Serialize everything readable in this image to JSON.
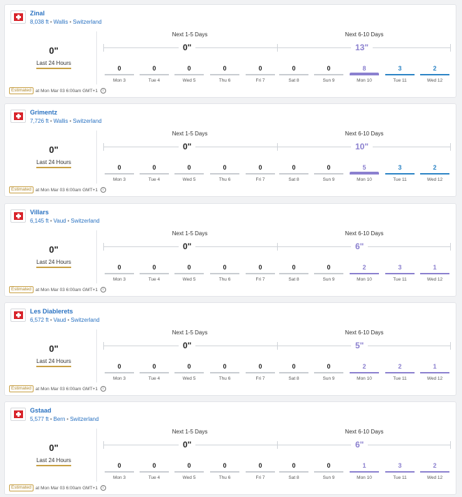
{
  "colors": {
    "link": "#2b73c2",
    "purple": "#8b80cf",
    "blue": "#2d85c6",
    "gray": "#c9cdd2",
    "gold": "#c8a044"
  },
  "labels": {
    "next_1_5": "Next 1-5 Days",
    "next_6_10": "Next 6-10 Days",
    "last_24": "Last 24 Hours",
    "estimated": "Estimated",
    "timestamp": "at Mon Mar 03 6:00am GMT+1",
    "separator": "•"
  },
  "resorts": [
    {
      "name": "Zinal",
      "elevation": "8,038 ft",
      "region": "Wallis",
      "country": "Switzerland",
      "last24": "0\"",
      "total_1_5": "0\"",
      "total_6_10": "13\"",
      "days": [
        {
          "label": "Mon 3",
          "value": "0",
          "color": "gray",
          "thick": false
        },
        {
          "label": "Tue 4",
          "value": "0",
          "color": "gray",
          "thick": false
        },
        {
          "label": "Wed 5",
          "value": "0",
          "color": "gray",
          "thick": false
        },
        {
          "label": "Thu 6",
          "value": "0",
          "color": "gray",
          "thick": false
        },
        {
          "label": "Fri 7",
          "value": "0",
          "color": "gray",
          "thick": false
        },
        {
          "label": "Sat 8",
          "value": "0",
          "color": "gray",
          "thick": false
        },
        {
          "label": "Sun 9",
          "value": "0",
          "color": "gray",
          "thick": false
        },
        {
          "label": "Mon 10",
          "value": "8",
          "color": "purple",
          "thick": true
        },
        {
          "label": "Tue 11",
          "value": "3",
          "color": "blue",
          "thick": false
        },
        {
          "label": "Wed 12",
          "value": "2",
          "color": "blue",
          "thick": false
        }
      ]
    },
    {
      "name": "Grimentz",
      "elevation": "7,726 ft",
      "region": "Wallis",
      "country": "Switzerland",
      "last24": "0\"",
      "total_1_5": "0\"",
      "total_6_10": "10\"",
      "days": [
        {
          "label": "Mon 3",
          "value": "0",
          "color": "gray",
          "thick": false
        },
        {
          "label": "Tue 4",
          "value": "0",
          "color": "gray",
          "thick": false
        },
        {
          "label": "Wed 5",
          "value": "0",
          "color": "gray",
          "thick": false
        },
        {
          "label": "Thu 6",
          "value": "0",
          "color": "gray",
          "thick": false
        },
        {
          "label": "Fri 7",
          "value": "0",
          "color": "gray",
          "thick": false
        },
        {
          "label": "Sat 8",
          "value": "0",
          "color": "gray",
          "thick": false
        },
        {
          "label": "Sun 9",
          "value": "0",
          "color": "gray",
          "thick": false
        },
        {
          "label": "Mon 10",
          "value": "5",
          "color": "purple",
          "thick": true
        },
        {
          "label": "Tue 11",
          "value": "3",
          "color": "blue",
          "thick": false
        },
        {
          "label": "Wed 12",
          "value": "2",
          "color": "blue",
          "thick": false
        }
      ]
    },
    {
      "name": "Villars",
      "elevation": "6,145 ft",
      "region": "Vaud",
      "country": "Switzerland",
      "last24": "0\"",
      "total_1_5": "0\"",
      "total_6_10": "6\"",
      "days": [
        {
          "label": "Mon 3",
          "value": "0",
          "color": "gray",
          "thick": false
        },
        {
          "label": "Tue 4",
          "value": "0",
          "color": "gray",
          "thick": false
        },
        {
          "label": "Wed 5",
          "value": "0",
          "color": "gray",
          "thick": false
        },
        {
          "label": "Thu 6",
          "value": "0",
          "color": "gray",
          "thick": false
        },
        {
          "label": "Fri 7",
          "value": "0",
          "color": "gray",
          "thick": false
        },
        {
          "label": "Sat 8",
          "value": "0",
          "color": "gray",
          "thick": false
        },
        {
          "label": "Sun 9",
          "value": "0",
          "color": "gray",
          "thick": false
        },
        {
          "label": "Mon 10",
          "value": "2",
          "color": "purple",
          "thick": false
        },
        {
          "label": "Tue 11",
          "value": "3",
          "color": "purple",
          "thick": false
        },
        {
          "label": "Wed 12",
          "value": "1",
          "color": "purple",
          "thick": false
        }
      ]
    },
    {
      "name": "Les Diablerets",
      "elevation": "6,572 ft",
      "region": "Vaud",
      "country": "Switzerland",
      "last24": "0\"",
      "total_1_5": "0\"",
      "total_6_10": "5\"",
      "days": [
        {
          "label": "Mon 3",
          "value": "0",
          "color": "gray",
          "thick": false
        },
        {
          "label": "Tue 4",
          "value": "0",
          "color": "gray",
          "thick": false
        },
        {
          "label": "Wed 5",
          "value": "0",
          "color": "gray",
          "thick": false
        },
        {
          "label": "Thu 6",
          "value": "0",
          "color": "gray",
          "thick": false
        },
        {
          "label": "Fri 7",
          "value": "0",
          "color": "gray",
          "thick": false
        },
        {
          "label": "Sat 8",
          "value": "0",
          "color": "gray",
          "thick": false
        },
        {
          "label": "Sun 9",
          "value": "0",
          "color": "gray",
          "thick": false
        },
        {
          "label": "Mon 10",
          "value": "2",
          "color": "purple",
          "thick": false
        },
        {
          "label": "Tue 11",
          "value": "2",
          "color": "purple",
          "thick": false
        },
        {
          "label": "Wed 12",
          "value": "1",
          "color": "purple",
          "thick": false
        }
      ]
    },
    {
      "name": "Gstaad",
      "elevation": "5,577 ft",
      "region": "Bern",
      "country": "Switzerland",
      "last24": "0\"",
      "total_1_5": "0\"",
      "total_6_10": "6\"",
      "days": [
        {
          "label": "Mon 3",
          "value": "0",
          "color": "gray",
          "thick": false
        },
        {
          "label": "Tue 4",
          "value": "0",
          "color": "gray",
          "thick": false
        },
        {
          "label": "Wed 5",
          "value": "0",
          "color": "gray",
          "thick": false
        },
        {
          "label": "Thu 6",
          "value": "0",
          "color": "gray",
          "thick": false
        },
        {
          "label": "Fri 7",
          "value": "0",
          "color": "gray",
          "thick": false
        },
        {
          "label": "Sat 8",
          "value": "0",
          "color": "gray",
          "thick": false
        },
        {
          "label": "Sun 9",
          "value": "0",
          "color": "gray",
          "thick": false
        },
        {
          "label": "Mon 10",
          "value": "1",
          "color": "purple",
          "thick": false
        },
        {
          "label": "Tue 11",
          "value": "3",
          "color": "purple",
          "thick": false
        },
        {
          "label": "Wed 12",
          "value": "2",
          "color": "purple",
          "thick": false
        }
      ]
    }
  ]
}
